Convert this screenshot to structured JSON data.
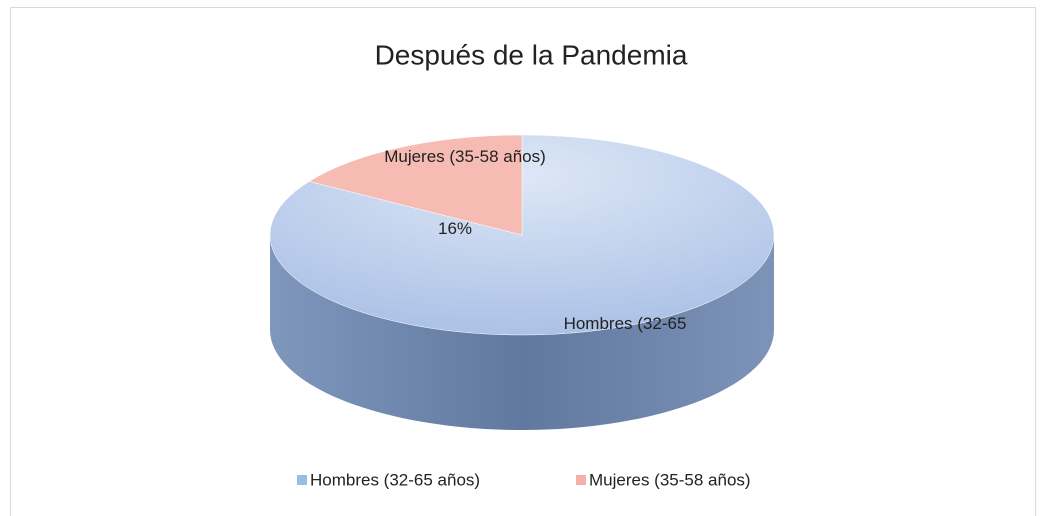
{
  "chart_data": {
    "type": "pie3d",
    "title": "Después de la Pandemia",
    "categories": [
      "Hombres (32-65 años)",
      "Mujeres (35-58 años)"
    ],
    "values": [
      84,
      16
    ],
    "value_labels": [
      null,
      "16%"
    ],
    "slice_labels": [
      "Hombres (32-65",
      "Mujeres (35-58 años)"
    ],
    "colors": [
      "#b9cdec",
      "#f6bcb3"
    ],
    "legend": "bottom"
  }
}
